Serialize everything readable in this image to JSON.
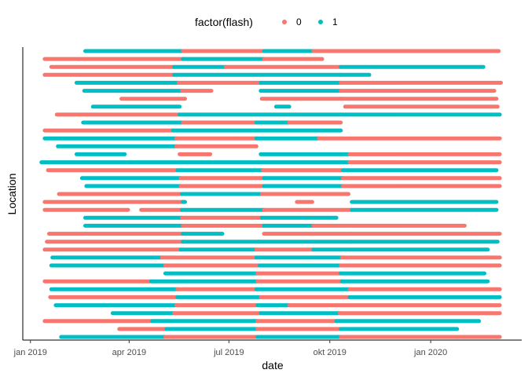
{
  "chart_data": {
    "type": "timeline",
    "xlabel": "date",
    "ylabel": "Location",
    "legend": {
      "title": "factor(flash)",
      "position": "top",
      "entries": [
        {
          "label": "0",
          "color": "#F8766D"
        },
        {
          "label": "1",
          "color": "#00BFC4"
        }
      ]
    },
    "xlim": [
      "2018-12-25",
      "2020-03-24"
    ],
    "x_ticks": [
      {
        "date": "2019-01-01",
        "label": "jan 2019"
      },
      {
        "date": "2019-04-01",
        "label": "apr 2019"
      },
      {
        "date": "2019-07-01",
        "label": "jul 2019"
      },
      {
        "date": "2019-10-01",
        "label": "okt 2019"
      },
      {
        "date": "2020-01-01",
        "label": "jan 2020"
      }
    ],
    "grid": false,
    "rows": [
      [
        [
          "2019-02-20",
          "2019-05-20",
          1
        ],
        [
          "2019-05-20",
          "2019-08-02",
          0
        ],
        [
          "2019-08-02",
          "2019-09-16",
          1
        ],
        [
          "2019-09-16",
          "2020-03-03",
          0
        ]
      ],
      [
        [
          "2019-01-14",
          "2019-05-20",
          0
        ],
        [
          "2019-05-20",
          "2019-08-02",
          1
        ],
        [
          "2019-08-02",
          "2019-09-24",
          0
        ]
      ],
      [
        [
          "2019-01-20",
          "2019-05-12",
          0
        ],
        [
          "2019-05-12",
          "2019-06-28",
          1
        ],
        [
          "2019-06-28",
          "2019-10-11",
          0
        ],
        [
          "2019-10-11",
          "2020-02-18",
          1
        ]
      ],
      [
        [
          "2019-01-14",
          "2019-05-12",
          0
        ],
        [
          "2019-05-12",
          "2019-10-11",
          1
        ],
        [
          "2019-10-11",
          "2019-11-06",
          1
        ]
      ],
      [
        [
          "2019-02-12",
          "2019-05-16",
          1
        ],
        [
          "2019-05-16",
          "2019-07-30",
          0
        ],
        [
          "2019-07-30",
          "2019-10-11",
          1
        ],
        [
          "2019-10-11",
          "2020-03-05",
          0
        ]
      ],
      [
        [
          "2019-02-19",
          "2019-05-19",
          1
        ],
        [
          "2019-05-19",
          "2019-06-15",
          0
        ],
        [
          "2019-07-30",
          "2019-10-11",
          1
        ],
        [
          "2019-10-11",
          "2020-02-28",
          0
        ]
      ],
      [
        [
          "2019-03-25",
          "2019-05-22",
          0
        ],
        [
          "2019-07-31",
          "2019-10-11",
          0
        ],
        [
          "2019-10-11",
          "2020-03-01",
          0
        ]
      ],
      [
        [
          "2019-02-27",
          "2019-05-17",
          1
        ],
        [
          "2019-08-13",
          "2019-08-25",
          1
        ],
        [
          "2019-10-15",
          "2020-03-02",
          0
        ]
      ],
      [
        [
          "2019-01-25",
          "2019-05-17",
          0
        ],
        [
          "2019-05-17",
          "2019-10-11",
          1
        ],
        [
          "2019-10-11",
          "2020-03-04",
          1
        ]
      ],
      [
        [
          "2019-02-18",
          "2019-05-20",
          1
        ],
        [
          "2019-05-20",
          "2019-07-26",
          0
        ],
        [
          "2019-07-26",
          "2019-08-25",
          1
        ],
        [
          "2019-08-25",
          "2019-10-11",
          0
        ]
      ],
      [
        [
          "2019-01-14",
          "2019-05-11",
          0
        ],
        [
          "2019-05-11",
          "2019-07-10",
          1
        ],
        [
          "2019-07-10",
          "2019-10-11",
          1
        ]
      ],
      [
        [
          "2019-01-14",
          "2019-05-14",
          1
        ],
        [
          "2019-05-14",
          "2019-07-26",
          0
        ],
        [
          "2019-07-26",
          "2019-09-21",
          1
        ],
        [
          "2019-09-21",
          "2020-03-04",
          0
        ]
      ],
      [
        [
          "2019-01-26",
          "2019-05-14",
          1
        ],
        [
          "2019-05-14",
          "2019-07-26",
          0
        ]
      ],
      [
        [
          "2019-02-12",
          "2019-03-28",
          1
        ],
        [
          "2019-05-17",
          "2019-06-14",
          0
        ],
        [
          "2019-07-30",
          "2019-10-19",
          1
        ],
        [
          "2019-10-19",
          "2020-03-04",
          0
        ]
      ],
      [
        [
          "2019-01-11",
          "2019-10-19",
          1
        ],
        [
          "2019-10-19",
          "2020-03-04",
          0
        ]
      ],
      [
        [
          "2019-01-17",
          "2019-05-15",
          0
        ],
        [
          "2019-05-15",
          "2019-08-01",
          1
        ],
        [
          "2019-08-01",
          "2019-10-13",
          0
        ],
        [
          "2019-10-13",
          "2020-03-01",
          1
        ]
      ],
      [
        [
          "2019-02-17",
          "2019-05-18",
          1
        ],
        [
          "2019-05-18",
          "2019-08-02",
          0
        ],
        [
          "2019-08-02",
          "2019-10-13",
          1
        ],
        [
          "2019-10-13",
          "2020-03-04",
          0
        ]
      ],
      [
        [
          "2019-02-21",
          "2019-05-18",
          1
        ],
        [
          "2019-05-18",
          "2019-08-02",
          0
        ],
        [
          "2019-08-02",
          "2019-10-13",
          1
        ],
        [
          "2019-10-13",
          "2020-03-04",
          0
        ]
      ],
      [
        [
          "2019-01-27",
          "2019-05-19",
          0
        ],
        [
          "2019-05-19",
          "2019-07-31",
          1
        ],
        [
          "2019-07-31",
          "2019-10-18",
          0
        ]
      ],
      [
        [
          "2019-01-14",
          "2019-05-20",
          0
        ],
        [
          "2019-05-20",
          "2019-05-22",
          1
        ],
        [
          "2019-09-01",
          "2019-09-15",
          0
        ],
        [
          "2019-10-21",
          "2020-03-01",
          1
        ]
      ],
      [
        [
          "2019-01-14",
          "2019-03-31",
          0
        ],
        [
          "2019-04-12",
          "2019-05-19",
          0
        ],
        [
          "2019-05-19",
          "2019-08-02",
          1
        ],
        [
          "2019-08-02",
          "2019-10-21",
          0
        ],
        [
          "2019-10-21",
          "2020-03-01",
          1
        ]
      ],
      [
        [
          "2019-02-20",
          "2019-05-19",
          1
        ],
        [
          "2019-05-19",
          "2019-07-31",
          0
        ],
        [
          "2019-07-31",
          "2019-10-07",
          1
        ]
      ],
      [
        [
          "2019-02-20",
          "2019-05-20",
          1
        ],
        [
          "2019-05-20",
          "2019-08-02",
          0
        ],
        [
          "2019-08-02",
          "2019-09-16",
          1
        ],
        [
          "2019-09-16",
          "2020-02-01",
          0
        ]
      ],
      [
        [
          "2019-01-18",
          "2019-05-20",
          0
        ],
        [
          "2019-05-20",
          "2019-06-25",
          1
        ],
        [
          "2019-08-02",
          "2019-10-20",
          0
        ],
        [
          "2019-10-20",
          "2020-03-04",
          0
        ]
      ],
      [
        [
          "2019-01-16",
          "2019-05-20",
          0
        ],
        [
          "2019-05-20",
          "2019-07-28",
          1
        ],
        [
          "2019-07-28",
          "2019-10-20",
          1
        ],
        [
          "2019-10-20",
          "2020-03-02",
          1
        ]
      ],
      [
        [
          "2019-01-14",
          "2019-05-18",
          0
        ],
        [
          "2019-05-18",
          "2019-07-26",
          1
        ],
        [
          "2019-07-26",
          "2019-09-16",
          0
        ],
        [
          "2019-09-16",
          "2020-02-22",
          1
        ]
      ],
      [
        [
          "2019-01-21",
          "2019-05-01",
          1
        ],
        [
          "2019-05-01",
          "2019-07-26",
          0
        ],
        [
          "2019-07-26",
          "2019-10-12",
          1
        ],
        [
          "2019-10-12",
          "2020-03-04",
          0
        ]
      ],
      [
        [
          "2019-01-20",
          "2019-05-04",
          1
        ],
        [
          "2019-05-04",
          "2019-07-29",
          0
        ],
        [
          "2019-07-29",
          "2019-10-11",
          1
        ],
        [
          "2019-10-11",
          "2020-03-04",
          0
        ]
      ],
      [
        [
          "2019-05-04",
          "2019-07-27",
          1
        ],
        [
          "2019-07-27",
          "2019-10-11",
          0
        ],
        [
          "2019-10-11",
          "2020-02-19",
          1
        ]
      ],
      [
        [
          "2019-01-14",
          "2019-04-21",
          0
        ],
        [
          "2019-04-21",
          "2019-07-27",
          1
        ],
        [
          "2019-07-27",
          "2019-10-12",
          0
        ],
        [
          "2019-10-12",
          "2020-02-22",
          1
        ]
      ],
      [
        [
          "2019-01-20",
          "2019-05-15",
          1
        ],
        [
          "2019-05-15",
          "2019-07-26",
          0
        ],
        [
          "2019-07-26",
          "2019-10-19",
          1
        ],
        [
          "2019-10-19",
          "2020-03-04",
          0
        ]
      ],
      [
        [
          "2019-01-19",
          "2019-05-15",
          0
        ],
        [
          "2019-05-15",
          "2019-07-30",
          1
        ],
        [
          "2019-07-30",
          "2019-10-19",
          0
        ],
        [
          "2019-10-19",
          "2020-03-04",
          1
        ]
      ],
      [
        [
          "2019-01-24",
          "2019-05-14",
          1
        ],
        [
          "2019-05-14",
          "2019-07-27",
          0
        ],
        [
          "2019-07-27",
          "2019-08-25",
          1
        ],
        [
          "2019-08-25",
          "2020-03-04",
          0
        ]
      ],
      [
        [
          "2019-03-17",
          "2019-05-12",
          1
        ],
        [
          "2019-05-12",
          "2019-07-30",
          0
        ],
        [
          "2019-07-30",
          "2019-10-10",
          1
        ],
        [
          "2019-10-10",
          "2020-03-04",
          0
        ]
      ],
      [
        [
          "2019-01-14",
          "2019-04-22",
          0
        ],
        [
          "2019-04-22",
          "2019-07-27",
          1
        ],
        [
          "2019-07-27",
          "2019-10-07",
          0
        ],
        [
          "2019-10-07",
          "2020-02-14",
          1
        ]
      ],
      [
        [
          "2019-03-23",
          "2019-05-05",
          0
        ],
        [
          "2019-05-05",
          "2019-07-27",
          1
        ],
        [
          "2019-07-27",
          "2019-10-11",
          0
        ],
        [
          "2019-10-11",
          "2020-01-25",
          1
        ]
      ],
      [
        [
          "2019-01-29",
          "2019-05-04",
          1
        ],
        [
          "2019-05-04",
          "2019-07-27",
          0
        ],
        [
          "2019-07-27",
          "2019-10-11",
          1
        ],
        [
          "2019-10-11",
          "2020-03-04",
          0
        ]
      ]
    ]
  }
}
